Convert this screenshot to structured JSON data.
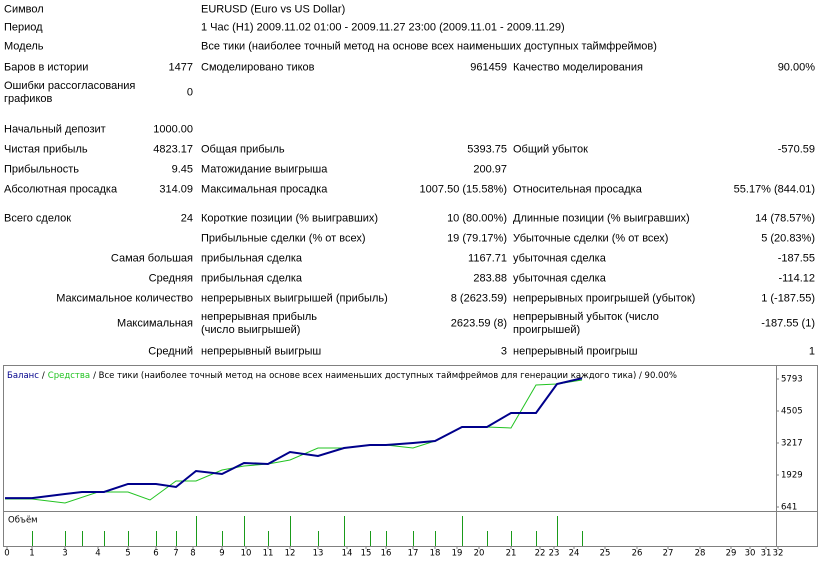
{
  "report": {
    "rows": [
      {
        "label1": "Символ",
        "label2": "EURUSD (Euro vs US Dollar)"
      },
      {
        "label1": "Период",
        "label2": "1 Час (H1) 2009.11.02 01:00 - 2009.11.27 23:00 (2009.11.01 - 2009.11.29)"
      },
      {
        "label1": "Модель",
        "label2": "Все тики (наиболее точный метод на основе всех наименьших доступных таймфреймов)"
      },
      {
        "label1": "Баров в истории",
        "value1": "1477",
        "label2": "Смоделировано тиков",
        "value2": "961459",
        "label3": "Качество моделирования",
        "value3": "90.00%"
      },
      {
        "label1": "Ошибки рассогласования графиков",
        "value1": "0"
      },
      {
        "label1": "Начальный депозит",
        "value1": "1000.00"
      },
      {
        "label1": "Чистая прибыль",
        "value1": "4823.17",
        "label2": "Общая прибыль",
        "value2": "5393.75",
        "label3": "Общий убыток",
        "value3": "-570.59"
      },
      {
        "label1": "Прибыльность",
        "value1": "9.45",
        "label2": "Матожидание выигрыша",
        "value2": "200.97"
      },
      {
        "label1": "Абсолютная просадка",
        "value1": "314.09",
        "label2": "Максимальная просадка",
        "value2": "1007.50 (15.58%)",
        "label3": "Относительная просадка",
        "value3": "55.17% (844.01)"
      },
      {
        "label1": "Всего сделок",
        "value1": "24",
        "label2": "Короткие позиции (% выигравших)",
        "value2": "10 (80.00%)",
        "label3": "Длинные позиции (% выигравших)",
        "value3": "14 (78.57%)"
      },
      {
        "label2": "Прибыльные сделки (% от всех)",
        "value2": "19 (79.17%)",
        "label3": "Убыточные сделки (% от всех)",
        "value3": "5 (20.83%)"
      },
      {
        "caption": "Самая большая",
        "label2": "прибыльная сделка",
        "value2": "1167.71",
        "label3": "убыточная сделка",
        "value3": "-187.55"
      },
      {
        "caption": "Средняя",
        "label2": "прибыльная сделка",
        "value2": "283.88",
        "label3": "убыточная сделка",
        "value3": "-114.12"
      },
      {
        "caption": "Максимальное количество",
        "label2": "непрерывных выигрышей (прибыль)",
        "value2": "8 (2623.59)",
        "label3": "непрерывных проигрышей (убыток)",
        "value3": "1 (-187.55)"
      },
      {
        "caption": "Максимальная",
        "label2": "непрерывная прибыль (число выигрышей)",
        "value2": "2623.59 (8)",
        "label3": "непрерывный убыток (число проигрышей)",
        "value3": "-187.55 (1)"
      },
      {
        "caption": "Средний",
        "label2": "непрерывный выигрыш",
        "value2": "3",
        "label3": "непрерывный проигрыш",
        "value3": "1"
      }
    ]
  },
  "chart_data": {
    "type": "line",
    "title": "/ Все тики (наиболее точный метод на основе всех наименьших доступных таймфреймов для генерации каждого тика) / 90.00%",
    "legend_delimiter": "/",
    "volume_label": "Объём",
    "xlim": [
      0,
      780
    ],
    "ylim": [
      520,
      6276
    ],
    "yticks": [
      641,
      1929,
      3217,
      4505,
      5793
    ],
    "xticks": [
      {
        "value": 7,
        "label": "0"
      },
      {
        "value": 32,
        "label": "1"
      },
      {
        "value": 65,
        "label": "3"
      },
      {
        "value": 98,
        "label": "4"
      },
      {
        "value": 128,
        "label": "5"
      },
      {
        "value": 156,
        "label": "6"
      },
      {
        "value": 176,
        "label": "7"
      },
      {
        "value": 193,
        "label": "8"
      },
      {
        "value": 222,
        "label": "9"
      },
      {
        "value": 246,
        "label": "10"
      },
      {
        "value": 268,
        "label": "11"
      },
      {
        "value": 290,
        "label": "12"
      },
      {
        "value": 318,
        "label": "13"
      },
      {
        "value": 347,
        "label": "14"
      },
      {
        "value": 366,
        "label": "15"
      },
      {
        "value": 386,
        "label": "16"
      },
      {
        "value": 413,
        "label": "17"
      },
      {
        "value": 435,
        "label": "18"
      },
      {
        "value": 457,
        "label": "19"
      },
      {
        "value": 479,
        "label": "20"
      },
      {
        "value": 511,
        "label": "21"
      },
      {
        "value": 540,
        "label": "22"
      },
      {
        "value": 554,
        "label": "23"
      },
      {
        "value": 574,
        "label": "24"
      },
      {
        "value": 605,
        "label": "25"
      },
      {
        "value": 637,
        "label": "26"
      },
      {
        "value": 668,
        "label": "27"
      },
      {
        "value": 700,
        "label": "28"
      },
      {
        "value": 731,
        "label": "29"
      },
      {
        "value": 750,
        "label": "30"
      },
      {
        "value": 766,
        "label": "31"
      },
      {
        "value": 778,
        "label": "32"
      }
    ],
    "series": [
      {
        "name": "Баланс",
        "color": "#00008b",
        "x": [
          5,
          32,
          65,
          82,
          104,
          128,
          156,
          176,
          196,
          222,
          244,
          268,
          290,
          318,
          344,
          370,
          386,
          413,
          435,
          462,
          487,
          511,
          536,
          557,
          582
        ],
        "values": [
          1000,
          1000,
          1164,
          1245,
          1245,
          1567,
          1567,
          1446,
          2090,
          1969,
          2412,
          2372,
          2855,
          2694,
          3016,
          3137,
          3137,
          3217,
          3298,
          3861,
          3861,
          4425,
          4425,
          5592,
          5823
        ]
      },
      {
        "name": "Средства",
        "color": "#22c322",
        "x": [
          5,
          32,
          65,
          98,
          128,
          150,
          176,
          196,
          222,
          244,
          268,
          290,
          318,
          344,
          370,
          386,
          413,
          435,
          462,
          487,
          511,
          536,
          557,
          582
        ],
        "values": [
          963,
          963,
          802,
          1245,
          1245,
          923,
          1688,
          1688,
          2130,
          2291,
          2372,
          2533,
          3016,
          3016,
          3137,
          3137,
          3016,
          3298,
          3861,
          3861,
          3821,
          5552,
          5592,
          5753
        ]
      }
    ],
    "volume": {
      "color": "#1a9a1a",
      "ylim": [
        0,
        2.2
      ],
      "x": [
        32,
        65,
        82,
        104,
        128,
        156,
        176,
        196,
        222,
        244,
        268,
        290,
        318,
        344,
        370,
        386,
        413,
        435,
        462,
        487,
        511,
        536,
        557,
        582
      ],
      "values": [
        1,
        1,
        1,
        1,
        1,
        1,
        1,
        2,
        1,
        2,
        1,
        2,
        1,
        2,
        1,
        1,
        1,
        1,
        2,
        1,
        1,
        1,
        2,
        1
      ]
    }
  }
}
